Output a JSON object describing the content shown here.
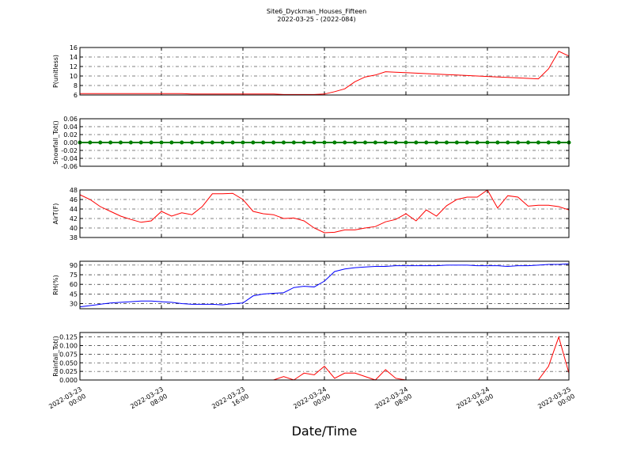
{
  "chart_data": [
    {
      "type": "line",
      "title": "Site6_Dyckman_Houses_Fifteen",
      "subtitle": "2022-03-25 - (2022-084)",
      "ylabel": "P(unitless)",
      "grid": true,
      "x": [
        "2022-03-23 00:00",
        "2022-03-23 01:00",
        "2022-03-23 02:00",
        "2022-03-23 03:00",
        "2022-03-23 04:00",
        "2022-03-23 05:00",
        "2022-03-23 06:00",
        "2022-03-23 07:00",
        "2022-03-23 08:00",
        "2022-03-23 09:00",
        "2022-03-23 10:00",
        "2022-03-23 11:00",
        "2022-03-23 12:00",
        "2022-03-23 13:00",
        "2022-03-23 14:00",
        "2022-03-23 15:00",
        "2022-03-23 16:00",
        "2022-03-23 17:00",
        "2022-03-23 18:00",
        "2022-03-23 19:00",
        "2022-03-23 20:00",
        "2022-03-23 21:00",
        "2022-03-23 22:00",
        "2022-03-23 23:00",
        "2022-03-24 00:00",
        "2022-03-24 01:00",
        "2022-03-24 02:00",
        "2022-03-24 03:00",
        "2022-03-24 04:00",
        "2022-03-24 05:00",
        "2022-03-24 06:00",
        "2022-03-24 07:00",
        "2022-03-24 08:00",
        "2022-03-24 09:00",
        "2022-03-24 10:00",
        "2022-03-24 11:00",
        "2022-03-24 12:00",
        "2022-03-24 13:00",
        "2022-03-24 14:00",
        "2022-03-24 15:00",
        "2022-03-24 16:00",
        "2022-03-24 17:00",
        "2022-03-24 18:00",
        "2022-03-24 19:00",
        "2022-03-24 20:00",
        "2022-03-24 21:00",
        "2022-03-24 22:00",
        "2022-03-24 23:00",
        "2022-03-25 00:00"
      ],
      "series": [
        {
          "name": "P",
          "color": "#ff0000",
          "values": [
            6.3,
            6.3,
            6.3,
            6.3,
            6.3,
            6.3,
            6.3,
            6.3,
            6.3,
            6.3,
            6.3,
            6.2,
            6.2,
            6.2,
            6.2,
            6.2,
            6.2,
            6.2,
            6.2,
            6.2,
            6.1,
            6.1,
            6.1,
            6.1,
            6.2,
            6.7,
            7.3,
            8.8,
            9.8,
            10.2,
            10.9,
            10.8,
            10.7,
            10.6,
            10.5,
            10.4,
            10.3,
            10.2,
            10.1,
            10.0,
            9.9,
            9.8,
            9.7,
            9.6,
            9.5,
            9.4,
            11.5,
            15.2,
            14.2
          ]
        }
      ],
      "xlim": [
        "2022-03-23 00:00",
        "2022-03-25 00:00"
      ],
      "xticks": [
        "2022-03-23 00:00",
        "2022-03-23 08:00",
        "2022-03-23 16:00",
        "2022-03-24 00:00",
        "2022-03-24 08:00",
        "2022-03-24 16:00",
        "2022-03-25 00:00"
      ],
      "ylim": [
        6,
        16
      ],
      "yticks": [
        6,
        8,
        10,
        12,
        14,
        16
      ]
    },
    {
      "type": "line",
      "ylabel": "Snowfall_Tot()",
      "grid": true,
      "markers": true,
      "x": [
        "2022-03-23 00:00",
        "2022-03-23 01:00",
        "2022-03-23 02:00",
        "2022-03-23 03:00",
        "2022-03-23 04:00",
        "2022-03-23 05:00",
        "2022-03-23 06:00",
        "2022-03-23 07:00",
        "2022-03-23 08:00",
        "2022-03-23 09:00",
        "2022-03-23 10:00",
        "2022-03-23 11:00",
        "2022-03-23 12:00",
        "2022-03-23 13:00",
        "2022-03-23 14:00",
        "2022-03-23 15:00",
        "2022-03-23 16:00",
        "2022-03-23 17:00",
        "2022-03-23 18:00",
        "2022-03-23 19:00",
        "2022-03-23 20:00",
        "2022-03-23 21:00",
        "2022-03-23 22:00",
        "2022-03-23 23:00",
        "2022-03-24 00:00",
        "2022-03-24 01:00",
        "2022-03-24 02:00",
        "2022-03-24 03:00",
        "2022-03-24 04:00",
        "2022-03-24 05:00",
        "2022-03-24 06:00",
        "2022-03-24 07:00",
        "2022-03-24 08:00",
        "2022-03-24 09:00",
        "2022-03-24 10:00",
        "2022-03-24 11:00",
        "2022-03-24 12:00",
        "2022-03-24 13:00",
        "2022-03-24 14:00",
        "2022-03-24 15:00",
        "2022-03-24 16:00",
        "2022-03-24 17:00",
        "2022-03-24 18:00",
        "2022-03-24 19:00",
        "2022-03-24 20:00",
        "2022-03-24 21:00",
        "2022-03-24 22:00",
        "2022-03-24 23:00",
        "2022-03-25 00:00"
      ],
      "series": [
        {
          "name": "Snowfall_Tot",
          "color": "#008000",
          "values": [
            0,
            0,
            0,
            0,
            0,
            0,
            0,
            0,
            0,
            0,
            0,
            0,
            0,
            0,
            0,
            0,
            0,
            0,
            0,
            0,
            0,
            0,
            0,
            0,
            0,
            0,
            0,
            0,
            0,
            0,
            0,
            0,
            0,
            0,
            0,
            0,
            0,
            0,
            0,
            0,
            0,
            0,
            0,
            0,
            0,
            0,
            0,
            0,
            0
          ]
        }
      ],
      "xlim": [
        "2022-03-23 00:00",
        "2022-03-25 00:00"
      ],
      "xticks": [
        "2022-03-23 00:00",
        "2022-03-23 08:00",
        "2022-03-23 16:00",
        "2022-03-24 00:00",
        "2022-03-24 08:00",
        "2022-03-24 16:00",
        "2022-03-25 00:00"
      ],
      "ylim": [
        -0.06,
        0.06
      ],
      "yticks": [
        -0.06,
        -0.04,
        -0.02,
        {
          "value": 0,
          "label": "0.00"
        },
        0.02,
        0.04,
        0.06
      ]
    },
    {
      "type": "line",
      "ylabel": "AirT(F)",
      "grid": true,
      "x": [
        "2022-03-23 00:00",
        "2022-03-23 01:00",
        "2022-03-23 02:00",
        "2022-03-23 03:00",
        "2022-03-23 04:00",
        "2022-03-23 05:00",
        "2022-03-23 06:00",
        "2022-03-23 07:00",
        "2022-03-23 08:00",
        "2022-03-23 09:00",
        "2022-03-23 10:00",
        "2022-03-23 11:00",
        "2022-03-23 12:00",
        "2022-03-23 13:00",
        "2022-03-23 14:00",
        "2022-03-23 15:00",
        "2022-03-23 16:00",
        "2022-03-23 17:00",
        "2022-03-23 18:00",
        "2022-03-23 19:00",
        "2022-03-23 20:00",
        "2022-03-23 21:00",
        "2022-03-23 22:00",
        "2022-03-23 23:00",
        "2022-03-24 00:00",
        "2022-03-24 01:00",
        "2022-03-24 02:00",
        "2022-03-24 03:00",
        "2022-03-24 04:00",
        "2022-03-24 05:00",
        "2022-03-24 06:00",
        "2022-03-24 07:00",
        "2022-03-24 08:00",
        "2022-03-24 09:00",
        "2022-03-24 10:00",
        "2022-03-24 11:00",
        "2022-03-24 12:00",
        "2022-03-24 13:00",
        "2022-03-24 14:00",
        "2022-03-24 15:00",
        "2022-03-24 16:00",
        "2022-03-24 17:00",
        "2022-03-24 18:00",
        "2022-03-24 19:00",
        "2022-03-24 20:00",
        "2022-03-24 21:00",
        "2022-03-24 22:00",
        "2022-03-24 23:00",
        "2022-03-25 00:00"
      ],
      "series": [
        {
          "name": "AirT",
          "color": "#ff0000",
          "values": [
            47,
            46,
            44.5,
            43.5,
            42.5,
            41.8,
            41.2,
            41.5,
            43.5,
            42.5,
            43.2,
            42.8,
            44.5,
            47.2,
            47.2,
            47.3,
            46,
            43.5,
            43,
            42.8,
            42,
            42.1,
            41.5,
            40,
            39,
            39.1,
            39.6,
            39.6,
            40,
            40.3,
            41.3,
            41.8,
            43,
            41.5,
            43.8,
            42.5,
            44.7,
            46,
            46.5,
            46.5,
            48,
            44.2,
            46.8,
            46.5,
            44.6,
            44.8,
            44.8,
            44.5,
            43.8
          ]
        }
      ],
      "xlim": [
        "2022-03-23 00:00",
        "2022-03-25 00:00"
      ],
      "xticks": [
        "2022-03-23 00:00",
        "2022-03-23 08:00",
        "2022-03-23 16:00",
        "2022-03-24 00:00",
        "2022-03-24 08:00",
        "2022-03-24 16:00",
        "2022-03-25 00:00"
      ],
      "ylim": [
        38,
        48
      ],
      "yticks": [
        38,
        40,
        42,
        44,
        46,
        48
      ]
    },
    {
      "type": "line",
      "ylabel": "RH(%)",
      "grid": true,
      "x": [
        "2022-03-23 00:00",
        "2022-03-23 01:00",
        "2022-03-23 02:00",
        "2022-03-23 03:00",
        "2022-03-23 04:00",
        "2022-03-23 05:00",
        "2022-03-23 06:00",
        "2022-03-23 07:00",
        "2022-03-23 08:00",
        "2022-03-23 09:00",
        "2022-03-23 10:00",
        "2022-03-23 11:00",
        "2022-03-23 12:00",
        "2022-03-23 13:00",
        "2022-03-23 14:00",
        "2022-03-23 15:00",
        "2022-03-23 16:00",
        "2022-03-23 17:00",
        "2022-03-23 18:00",
        "2022-03-23 19:00",
        "2022-03-23 20:00",
        "2022-03-23 21:00",
        "2022-03-23 22:00",
        "2022-03-23 23:00",
        "2022-03-24 00:00",
        "2022-03-24 01:00",
        "2022-03-24 02:00",
        "2022-03-24 03:00",
        "2022-03-24 04:00",
        "2022-03-24 05:00",
        "2022-03-24 06:00",
        "2022-03-24 07:00",
        "2022-03-24 08:00",
        "2022-03-24 09:00",
        "2022-03-24 10:00",
        "2022-03-24 11:00",
        "2022-03-24 12:00",
        "2022-03-24 13:00",
        "2022-03-24 14:00",
        "2022-03-24 15:00",
        "2022-03-24 16:00",
        "2022-03-24 17:00",
        "2022-03-24 18:00",
        "2022-03-24 19:00",
        "2022-03-24 20:00",
        "2022-03-24 21:00",
        "2022-03-24 22:00",
        "2022-03-24 23:00",
        "2022-03-25 00:00"
      ],
      "series": [
        {
          "name": "RH",
          "color": "#0000ff",
          "values": [
            25,
            27,
            29,
            31,
            32,
            33,
            34,
            34,
            33,
            32,
            30,
            29,
            29,
            29,
            28,
            30,
            31,
            42,
            45,
            46,
            47,
            55,
            57,
            56,
            65,
            80,
            84,
            86,
            87,
            88,
            88,
            89,
            89,
            89,
            89,
            89,
            90,
            90,
            90,
            89,
            89,
            89,
            88,
            89,
            89,
            90,
            91,
            91,
            92
          ]
        }
      ],
      "xlim": [
        "2022-03-23 00:00",
        "2022-03-25 00:00"
      ],
      "xticks": [
        "2022-03-23 00:00",
        "2022-03-23 08:00",
        "2022-03-23 16:00",
        "2022-03-24 00:00",
        "2022-03-24 08:00",
        "2022-03-24 16:00",
        "2022-03-25 00:00"
      ],
      "ylim": [
        22,
        96
      ],
      "yticks": [
        30,
        45,
        60,
        75,
        90
      ]
    },
    {
      "type": "line",
      "ylabel": "Rainfall_Tot()",
      "xlabel": "Date/Time",
      "grid": true,
      "show_xtick_labels": true,
      "x": [
        "2022-03-23 00:00",
        "2022-03-23 01:00",
        "2022-03-23 02:00",
        "2022-03-23 03:00",
        "2022-03-23 04:00",
        "2022-03-23 05:00",
        "2022-03-23 06:00",
        "2022-03-23 07:00",
        "2022-03-23 08:00",
        "2022-03-23 09:00",
        "2022-03-23 10:00",
        "2022-03-23 11:00",
        "2022-03-23 12:00",
        "2022-03-23 13:00",
        "2022-03-23 14:00",
        "2022-03-23 15:00",
        "2022-03-23 16:00",
        "2022-03-23 17:00",
        "2022-03-23 18:00",
        "2022-03-23 19:00",
        "2022-03-23 20:00",
        "2022-03-23 21:00",
        "2022-03-23 22:00",
        "2022-03-23 23:00",
        "2022-03-24 00:00",
        "2022-03-24 01:00",
        "2022-03-24 02:00",
        "2022-03-24 03:00",
        "2022-03-24 04:00",
        "2022-03-24 05:00",
        "2022-03-24 06:00",
        "2022-03-24 07:00",
        "2022-03-24 08:00",
        "2022-03-24 09:00",
        "2022-03-24 10:00",
        "2022-03-24 11:00",
        "2022-03-24 12:00",
        "2022-03-24 13:00",
        "2022-03-24 14:00",
        "2022-03-24 15:00",
        "2022-03-24 16:00",
        "2022-03-24 17:00",
        "2022-03-24 18:00",
        "2022-03-24 19:00",
        "2022-03-24 20:00",
        "2022-03-24 21:00",
        "2022-03-24 22:00",
        "2022-03-24 23:00",
        "2022-03-25 00:00"
      ],
      "series": [
        {
          "name": "Rainfall_Tot",
          "color": "#ff0000",
          "values": [
            0,
            0,
            0,
            0,
            0,
            0,
            0,
            0,
            0,
            0,
            0,
            0,
            0,
            0,
            0,
            0,
            0,
            0,
            0,
            0,
            0.01,
            0,
            0.02,
            0.015,
            0.04,
            0.005,
            0.02,
            0.02,
            0.01,
            0,
            0.03,
            0.005,
            0,
            0,
            0,
            0,
            0,
            0,
            0,
            0,
            0,
            0,
            0,
            0,
            0,
            0,
            0.04,
            0.125,
            0.02
          ]
        }
      ],
      "xlim": [
        "2022-03-23 00:00",
        "2022-03-25 00:00"
      ],
      "xticks": [
        "2022-03-23 00:00",
        "2022-03-23 08:00",
        "2022-03-23 16:00",
        "2022-03-24 00:00",
        "2022-03-24 08:00",
        "2022-03-24 16:00",
        "2022-03-25 00:00"
      ],
      "ylim": [
        0,
        0.138
      ],
      "yticks": [
        {
          "value": 0,
          "label": "0.000"
        },
        {
          "value": 0.025,
          "label": "0.025"
        },
        {
          "value": 0.05,
          "label": "0.050"
        },
        {
          "value": 0.075,
          "label": "0.075"
        },
        {
          "value": 0.1,
          "label": "0.100"
        },
        {
          "value": 0.125,
          "label": "0.125"
        }
      ]
    }
  ]
}
